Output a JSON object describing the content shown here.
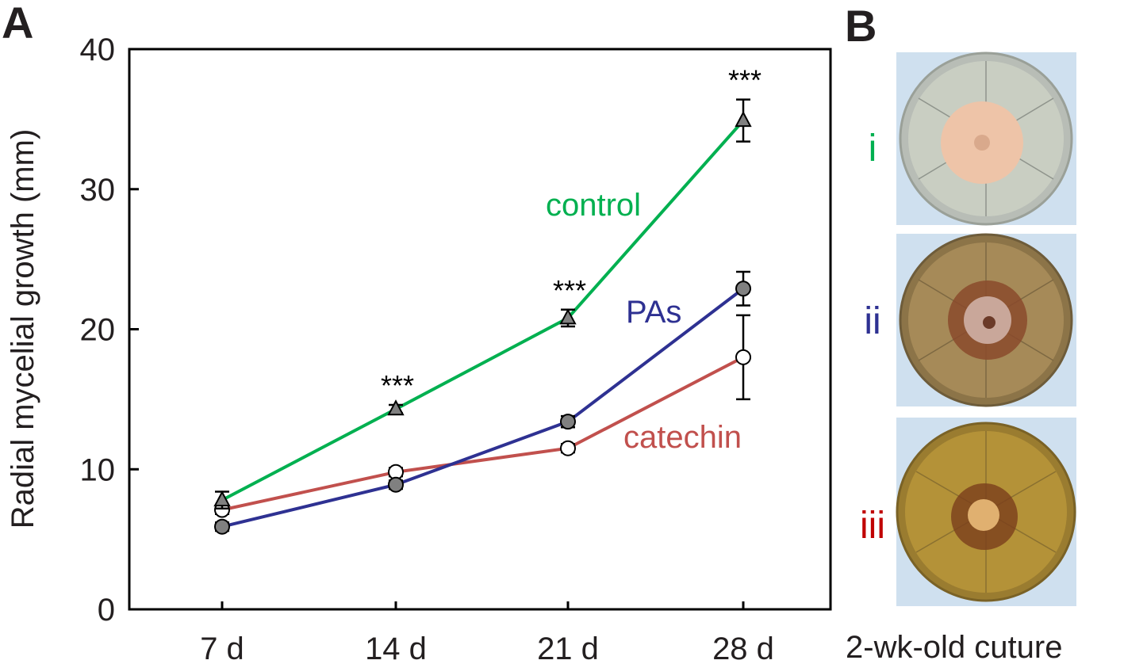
{
  "panels": {
    "a_label": "A",
    "b_label": "B",
    "b_caption": "2-wk-old cuture"
  },
  "chart_data": {
    "type": "line",
    "title": "",
    "xlabel": "",
    "ylabel": "Radial mycelial growth (mm)",
    "categories": [
      "7 d",
      "14 d",
      "21 d",
      "28 d"
    ],
    "ylim": [
      0,
      40
    ],
    "yticks": [
      0,
      10,
      20,
      30,
      40
    ],
    "grid": false,
    "series": [
      {
        "name": "control",
        "color": "#00b050",
        "marker": "triangle",
        "marker_fill": "#808080",
        "values": [
          7.8,
          14.3,
          20.8,
          34.9
        ],
        "errors": [
          0.6,
          0.3,
          0.6,
          1.5
        ]
      },
      {
        "name": "PAs",
        "color": "#2e3192",
        "marker": "circle",
        "marker_fill": "#808080",
        "values": [
          5.9,
          8.9,
          13.4,
          22.9
        ],
        "errors": [
          0.3,
          0.3,
          0.4,
          1.2
        ]
      },
      {
        "name": "catechin",
        "color": "#c1504d",
        "marker": "circle",
        "marker_fill": "#ffffff",
        "values": [
          7.1,
          9.8,
          11.5,
          18.0
        ],
        "errors": [
          0.3,
          0.3,
          0.3,
          3.0
        ]
      }
    ],
    "annotations": [
      {
        "text": "***",
        "category": "14 d"
      },
      {
        "text": "***",
        "category": "21 d"
      },
      {
        "text": "***",
        "category": "28 d"
      }
    ]
  },
  "plates": [
    {
      "label": "i",
      "color": "#00b050",
      "agar": "#c9cec2",
      "colony": "#eec4a8"
    },
    {
      "label": "ii",
      "color": "#2e3192",
      "agar": "#a68a58",
      "colony": "#c9a79a"
    },
    {
      "label": "iii",
      "color": "#c00000",
      "agar": "#b49238",
      "colony": "#e0b070"
    }
  ]
}
